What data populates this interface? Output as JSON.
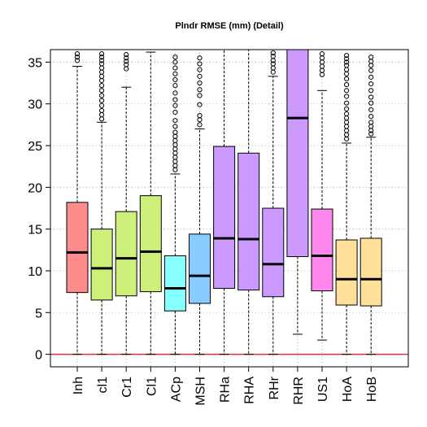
{
  "chart_data": {
    "type": "box",
    "title": "Plndr RMSE (mm) (Detail)",
    "xlabel": "",
    "ylabel": "",
    "ylim": [
      -1.5,
      36.5
    ],
    "yticks": [
      0,
      5,
      10,
      15,
      20,
      25,
      30,
      35
    ],
    "grid": true,
    "reference_line": {
      "y": 0,
      "color": "#e03030"
    },
    "boxes": [
      {
        "label": "Inh",
        "color": "#ff8c8c",
        "whisker_low": 0,
        "q1": 7.4,
        "median": 12.2,
        "q3": 18.2,
        "whisker_high": 34.5,
        "outliers": [
          35.2,
          35.6,
          36.0
        ]
      },
      {
        "label": "cl1",
        "color": "#ccf07a",
        "whisker_low": 0,
        "q1": 6.5,
        "median": 10.3,
        "q3": 15.0,
        "whisker_high": 27.8,
        "outliers": [
          28.2,
          28.7,
          29.2,
          29.8,
          30.4,
          31.0,
          31.6,
          32.2,
          32.8,
          33.3,
          33.8,
          34.3,
          34.8,
          35.2,
          35.6,
          36.0
        ]
      },
      {
        "label": "Cr1",
        "color": "#ccf07a",
        "whisker_low": 0,
        "q1": 7.0,
        "median": 11.5,
        "q3": 17.1,
        "whisker_high": 32.0,
        "outliers": [
          34.2,
          34.7,
          35.1,
          35.5,
          35.9
        ]
      },
      {
        "label": "Cl1",
        "color": "#ccf07a",
        "whisker_low": 0,
        "q1": 7.5,
        "median": 12.3,
        "q3": 19.0,
        "whisker_high": 36.2,
        "outliers": []
      },
      {
        "label": "ACp",
        "color": "#88ffff",
        "whisker_low": 0,
        "q1": 5.2,
        "median": 7.9,
        "q3": 11.8,
        "whisker_high": 21.6,
        "outliers": [
          22.1,
          22.6,
          23.1,
          23.6,
          24.1,
          24.6,
          25.1,
          25.6,
          26.1,
          26.6,
          27.3,
          28.0,
          29.0,
          29.8,
          30.5,
          31.3,
          32.2,
          32.9,
          33.6,
          34.3,
          35.0,
          35.6
        ]
      },
      {
        "label": "MSH",
        "color": "#88ccff",
        "whisker_low": 0,
        "q1": 6.1,
        "median": 9.4,
        "q3": 14.4,
        "whisker_high": 27.0,
        "outliers": [
          27.5,
          28.1,
          28.6,
          29.9,
          31.0,
          31.7,
          32.5,
          33.3,
          34.1,
          34.8,
          35.5
        ]
      },
      {
        "label": "RHa",
        "color": "#cc99ff",
        "whisker_low": 0,
        "q1": 7.9,
        "median": 13.9,
        "q3": 24.9,
        "whisker_high": 36.5,
        "outliers": []
      },
      {
        "label": "RHA",
        "color": "#cc99ff",
        "whisker_low": 0,
        "q1": 7.7,
        "median": 13.8,
        "q3": 24.1,
        "whisker_high": 36.5,
        "outliers": []
      },
      {
        "label": "RHr",
        "color": "#cc99ff",
        "whisker_low": 0,
        "q1": 6.9,
        "median": 10.8,
        "q3": 17.5,
        "whisker_high": 33.3,
        "outliers": [
          33.8,
          34.3,
          34.8,
          35.2,
          35.7,
          36.1
        ]
      },
      {
        "label": "RHR",
        "color": "#cc99ff",
        "whisker_low": 2.4,
        "q1": 11.7,
        "median": 28.3,
        "q3": 36.5,
        "whisker_high": 36.5,
        "outliers": []
      },
      {
        "label": "US1",
        "color": "#ff88ee",
        "whisker_low": 1.7,
        "q1": 7.6,
        "median": 11.8,
        "q3": 17.4,
        "whisker_high": 31.6,
        "outliers": [
          33.5,
          34.0,
          34.5,
          35.0,
          35.5,
          36.0
        ]
      },
      {
        "label": "HoA",
        "color": "#ffe099",
        "whisker_low": 0,
        "q1": 5.9,
        "median": 9.0,
        "q3": 13.7,
        "whisker_high": 25.3,
        "outliers": [
          25.8,
          26.3,
          26.8,
          27.3,
          27.8,
          28.3,
          28.8,
          29.4,
          30.1,
          30.9,
          31.6,
          32.3,
          33.0,
          33.6,
          34.1,
          34.6,
          35.0,
          35.4,
          35.8
        ]
      },
      {
        "label": "HoB",
        "color": "#ffe099",
        "whisker_low": 0,
        "q1": 5.8,
        "median": 9.0,
        "q3": 13.9,
        "whisker_high": 26.0,
        "outliers": [
          26.4,
          26.8,
          27.3,
          27.8,
          28.5,
          29.3,
          30.1,
          30.8,
          31.6,
          32.4,
          33.2,
          34.0,
          34.6,
          35.1,
          35.6
        ]
      }
    ]
  }
}
